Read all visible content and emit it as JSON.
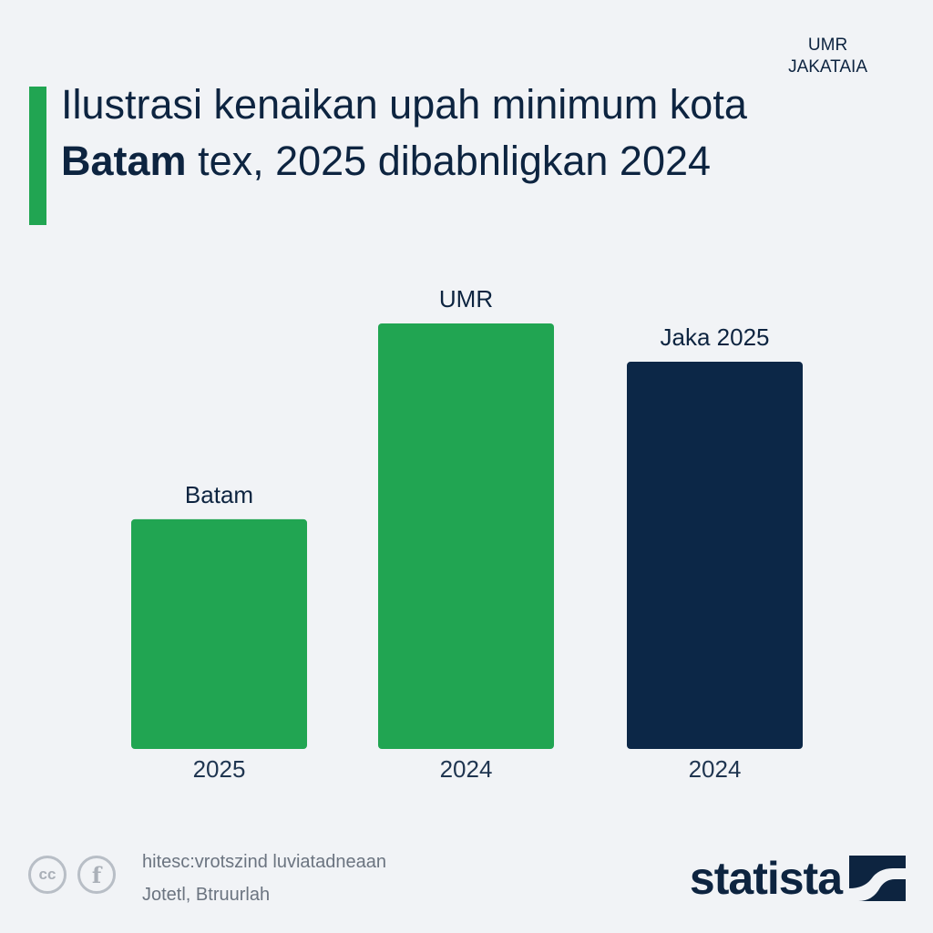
{
  "header": {
    "title_part1": "Ilustrasi kenaikan upah minimum kota ",
    "title_bold": "Batam",
    "title_part2": " tex, 2025 dibabnligkan 2024",
    "corner_label": [
      "UMR",
      "JAKATAIA"
    ]
  },
  "chart_data": {
    "type": "bar",
    "title": "Ilustrasi kenaikan upah minimum kota Batam tex, 2025 dibabnligkan 2024",
    "categories": [
      "2025",
      "2024",
      "2024"
    ],
    "values": [
      54,
      100,
      91
    ],
    "bar_labels": [
      "Batam",
      "UMR",
      "Jaka 2025"
    ],
    "colors": [
      "#21a552",
      "#21a552",
      "#0c2747"
    ],
    "ylim": [
      0,
      100
    ],
    "y_axis_shown": false,
    "grid": false,
    "legend": "none",
    "value_unit": "relative height (no axis printed)"
  },
  "footer": {
    "line1": "hitesc:vrotszind luviatadneaan",
    "line2": "Jotetl, Btruurlah",
    "icons": [
      "creative-commons-icon",
      "facebook-icon"
    ],
    "brand": "statista"
  },
  "colors": {
    "background": "#f1f3f6",
    "green": "#21a552",
    "navy": "#0c2747",
    "text": "#0d2440"
  }
}
